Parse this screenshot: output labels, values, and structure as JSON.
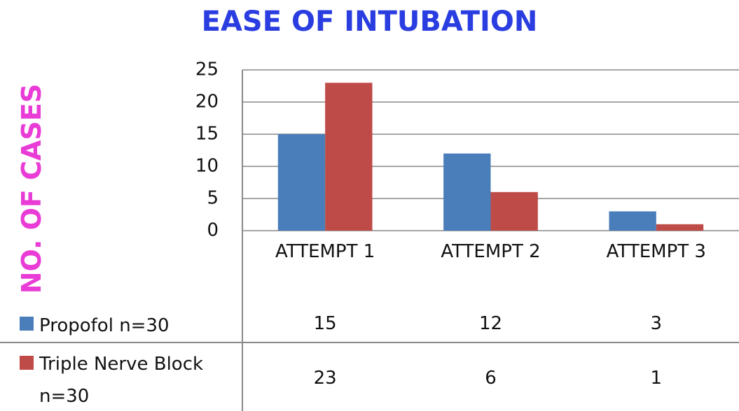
{
  "chart_data": {
    "type": "bar",
    "title": "EASE OF INTUBATION",
    "y_label": "NO. OF CASES",
    "categories": [
      "ATTEMPT 1",
      "ATTEMPT 2",
      "ATTEMPT 3"
    ],
    "series": [
      {
        "name": "Propofol n=30",
        "color": "#4a7ebb",
        "values": [
          15,
          12,
          3
        ]
      },
      {
        "name": "Triple Nerve Block n=30",
        "color": "#be4b48",
        "values": [
          23,
          6,
          1
        ]
      }
    ],
    "ylim": [
      0,
      25
    ],
    "yticks": [
      0,
      5,
      10,
      15,
      20,
      25
    ],
    "grid": true,
    "data_table": true
  }
}
